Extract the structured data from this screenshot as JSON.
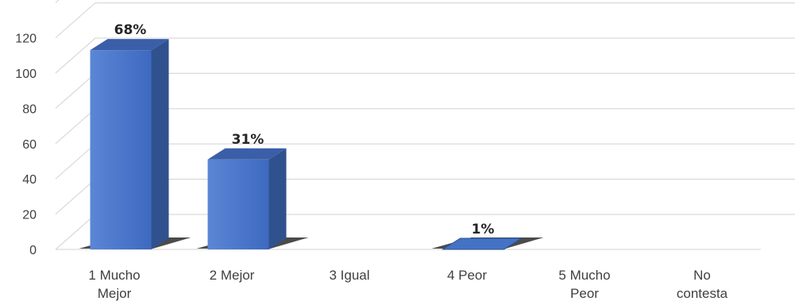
{
  "chart_data": {
    "type": "bar",
    "categories": [
      "1 Mucho Mejor",
      "2 Mejor",
      "3 Igual",
      "4 Peor",
      "5 Mucho Peor",
      "No contesta"
    ],
    "values": [
      113,
      51,
      0,
      1,
      0,
      0
    ],
    "data_labels": [
      "68%",
      "31%",
      "",
      "1%",
      "",
      ""
    ],
    "y_ticks": [
      "0",
      "20",
      "40",
      "60",
      "80",
      "100",
      "120"
    ],
    "ylim": [
      0,
      140
    ],
    "grid": true,
    "legend": "none",
    "colors": {
      "bar_front": "#4472c4",
      "bar_side": "#2f528f",
      "bar_top": "#3a5fa8",
      "grid": "#d9d9d9"
    }
  }
}
